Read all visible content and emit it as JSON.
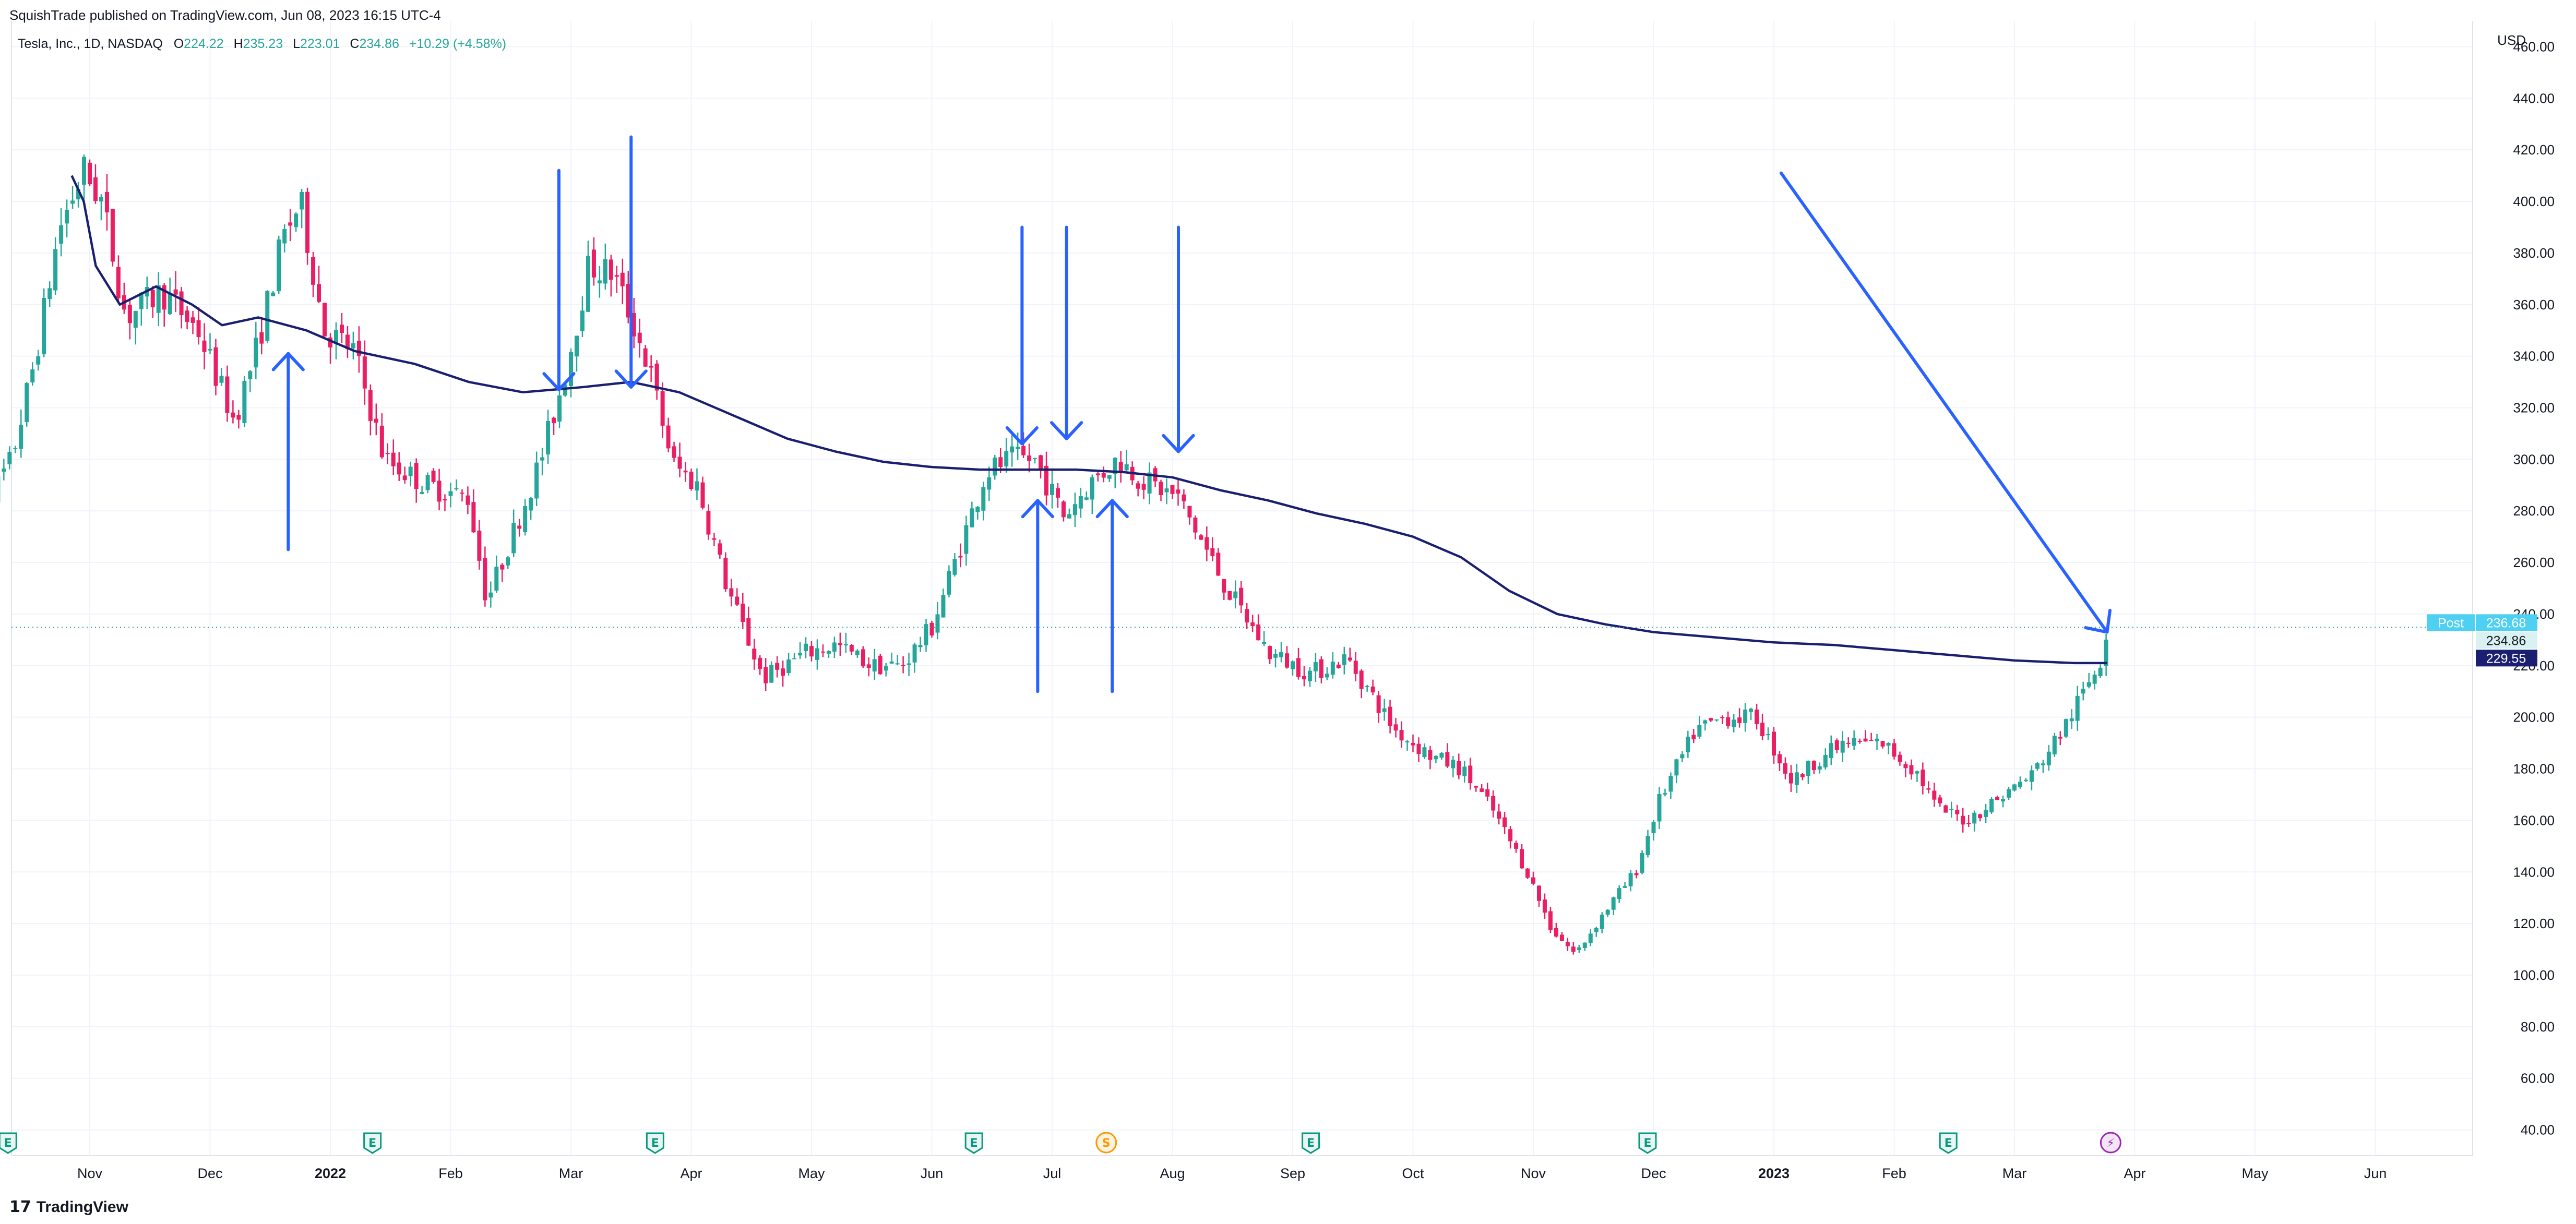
{
  "header": {
    "published": "SquishTrade published on TradingView.com, Jun 08, 2023 16:15 UTC-4"
  },
  "legend": {
    "symbol": "Tesla, Inc., 1D, NASDAQ",
    "o_label": "O",
    "o_value": "224.22",
    "h_label": "H",
    "h_value": "235.23",
    "l_label": "L",
    "l_value": "223.01",
    "c_label": "C",
    "c_value": "234.86",
    "change": "+10.29 (+4.58%)"
  },
  "footer": {
    "brand": "TradingView",
    "logo_glyph": "17"
  },
  "colors": {
    "up": "#26a69a",
    "down": "#e91e63",
    "ma": "#1a1f71",
    "arrow": "#2962ff",
    "earn": "#089981",
    "split": "#ff9800",
    "div": "#9c27b0"
  },
  "chart_data": {
    "type": "candlestick",
    "title": "Tesla, Inc., 1D, NASDAQ",
    "currency": "USD",
    "ylim": [
      30,
      470
    ],
    "y_ticks": [
      40,
      60,
      80,
      100,
      120,
      140,
      160,
      180,
      200,
      220,
      240,
      260,
      280,
      300,
      320,
      340,
      360,
      380,
      400,
      420,
      440,
      460
    ],
    "y_tick_labels": [
      "40.00",
      "60.00",
      "80.00",
      "100.00",
      "120.00",
      "140.00",
      "160.00",
      "180.00",
      "200.00",
      "220.00",
      "240.00",
      "260.00",
      "280.00",
      "300.00",
      "320.00",
      "340.00",
      "360.00",
      "380.00",
      "400.00",
      "420.00",
      "440.00",
      "460.00"
    ],
    "x_ticks": [
      "Nov",
      "Dec",
      "2022",
      "Feb",
      "Mar",
      "Apr",
      "May",
      "Jun",
      "Jul",
      "Aug",
      "Sep",
      "Oct",
      "Nov",
      "Dec",
      "2023",
      "Feb",
      "Mar",
      "Apr",
      "May",
      "Jun"
    ],
    "x_tick_months": [
      1,
      2,
      3,
      4,
      5,
      6,
      7,
      8,
      9,
      10,
      11,
      12,
      13,
      14,
      15,
      16,
      17,
      18,
      19,
      20
    ],
    "price_path": [
      [
        0,
        270
      ],
      [
        0.35,
        300
      ],
      [
        0.55,
        340
      ],
      [
        0.75,
        390
      ],
      [
        0.95,
        412
      ],
      [
        1.1,
        400
      ],
      [
        1.3,
        355
      ],
      [
        1.6,
        365
      ],
      [
        1.9,
        350
      ],
      [
        2.2,
        315
      ],
      [
        2.4,
        345
      ],
      [
        2.6,
        385
      ],
      [
        2.75,
        400
      ],
      [
        2.95,
        350
      ],
      [
        3.2,
        342
      ],
      [
        3.45,
        300
      ],
      [
        3.8,
        290
      ],
      [
        4.15,
        285
      ],
      [
        4.3,
        245
      ],
      [
        4.55,
        275
      ],
      [
        4.75,
        300
      ],
      [
        4.95,
        333
      ],
      [
        5.15,
        375
      ],
      [
        5.35,
        372
      ],
      [
        5.5,
        355
      ],
      [
        5.65,
        335
      ],
      [
        5.85,
        298
      ],
      [
        6.05,
        290
      ],
      [
        6.3,
        250
      ],
      [
        6.6,
        215
      ],
      [
        6.95,
        225
      ],
      [
        7.2,
        228
      ],
      [
        7.5,
        220
      ],
      [
        7.75,
        220
      ],
      [
        8.0,
        235
      ],
      [
        8.25,
        268
      ],
      [
        8.45,
        295
      ],
      [
        8.65,
        300
      ],
      [
        8.85,
        300
      ],
      [
        9.1,
        278
      ],
      [
        9.3,
        290
      ],
      [
        9.55,
        300
      ],
      [
        9.75,
        292
      ],
      [
        10.05,
        285
      ],
      [
        10.45,
        250
      ],
      [
        10.8,
        225
      ],
      [
        11.15,
        217
      ],
      [
        11.45,
        223
      ],
      [
        11.85,
        195
      ],
      [
        12.15,
        185
      ],
      [
        12.4,
        180
      ],
      [
        12.65,
        165
      ],
      [
        12.95,
        140
      ],
      [
        13.15,
        118
      ],
      [
        13.35,
        108
      ],
      [
        13.6,
        125
      ],
      [
        13.85,
        140
      ],
      [
        14.05,
        168
      ],
      [
        14.35,
        195
      ],
      [
        14.6,
        200
      ],
      [
        14.85,
        200
      ],
      [
        15.15,
        175
      ],
      [
        15.4,
        185
      ],
      [
        15.6,
        190
      ],
      [
        15.9,
        190
      ],
      [
        16.2,
        178
      ],
      [
        16.35,
        165
      ],
      [
        16.6,
        160
      ],
      [
        16.85,
        168
      ],
      [
        17.15,
        178
      ],
      [
        17.4,
        195
      ],
      [
        17.6,
        212
      ],
      [
        17.72,
        223
      ],
      [
        17.77,
        235
      ]
    ],
    "ma_series": {
      "name": "Moving average",
      "points": [
        [
          0.85,
          410
        ],
        [
          0.95,
          400
        ],
        [
          1.05,
          375
        ],
        [
          1.25,
          360
        ],
        [
          1.55,
          367
        ],
        [
          1.85,
          360
        ],
        [
          2.1,
          352
        ],
        [
          2.4,
          355
        ],
        [
          2.8,
          350
        ],
        [
          3.2,
          342
        ],
        [
          3.7,
          337
        ],
        [
          4.15,
          330
        ],
        [
          4.6,
          326
        ],
        [
          5.1,
          328
        ],
        [
          5.5,
          330
        ],
        [
          5.9,
          326
        ],
        [
          6.4,
          316
        ],
        [
          6.8,
          308
        ],
        [
          7.2,
          303
        ],
        [
          7.6,
          299
        ],
        [
          8.0,
          297
        ],
        [
          8.4,
          296
        ],
        [
          8.8,
          296
        ],
        [
          9.2,
          296
        ],
        [
          9.6,
          295
        ],
        [
          10.0,
          293
        ],
        [
          10.4,
          288
        ],
        [
          10.8,
          284
        ],
        [
          11.2,
          279
        ],
        [
          11.6,
          275
        ],
        [
          12.0,
          270
        ],
        [
          12.4,
          262
        ],
        [
          12.8,
          249
        ],
        [
          13.2,
          240
        ],
        [
          13.6,
          236
        ],
        [
          14.0,
          233
        ],
        [
          14.5,
          231
        ],
        [
          15.0,
          229
        ],
        [
          15.5,
          228
        ],
        [
          16.0,
          226
        ],
        [
          16.5,
          224
        ],
        [
          17.0,
          222
        ],
        [
          17.5,
          221
        ],
        [
          17.77,
          221
        ]
      ]
    },
    "price_line": 234.86,
    "badges": [
      {
        "label": "Post",
        "value": "236.68",
        "price": 236.68
      },
      {
        "label": "",
        "value": "234.86",
        "price": 234.86
      },
      {
        "label": "",
        "value": "229.55",
        "price": 229.55
      }
    ],
    "arrows": [
      {
        "from": [
          2.65,
          265
        ],
        "to": [
          2.65,
          341
        ]
      },
      {
        "from": [
          4.9,
          412
        ],
        "to": [
          4.9,
          327
        ]
      },
      {
        "from": [
          5.5,
          425
        ],
        "to": [
          5.5,
          328
        ]
      },
      {
        "from": [
          8.75,
          390
        ],
        "to": [
          8.75,
          306
        ]
      },
      {
        "from": [
          8.88,
          210
        ],
        "to": [
          8.88,
          284
        ]
      },
      {
        "from": [
          9.12,
          390
        ],
        "to": [
          9.12,
          308
        ]
      },
      {
        "from": [
          9.5,
          210
        ],
        "to": [
          9.5,
          284
        ]
      },
      {
        "from": [
          10.05,
          390
        ],
        "to": [
          10.05,
          303
        ]
      },
      {
        "from": [
          15.06,
          411
        ],
        "to": [
          17.77,
          233
        ]
      }
    ],
    "events": [
      {
        "type": "earnings",
        "label": "E",
        "month": 0.32
      },
      {
        "type": "earnings",
        "label": "E",
        "month": 3.35
      },
      {
        "type": "earnings",
        "label": "E",
        "month": 5.7
      },
      {
        "type": "earnings",
        "label": "E",
        "month": 8.35
      },
      {
        "type": "split",
        "label": "S",
        "month": 9.45
      },
      {
        "type": "earnings",
        "label": "E",
        "month": 11.15
      },
      {
        "type": "earnings",
        "label": "E",
        "month": 13.95
      },
      {
        "type": "earnings",
        "label": "E",
        "month": 16.45
      },
      {
        "type": "dividend",
        "label": "⚡",
        "month": 17.8
      }
    ]
  }
}
